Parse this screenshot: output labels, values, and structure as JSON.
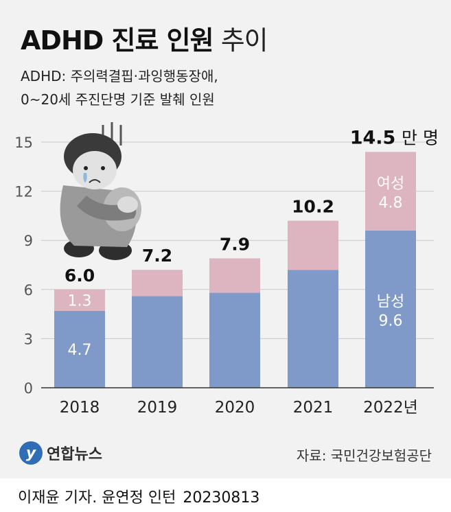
{
  "header": {
    "title_bold": "ADHD 진료 인원",
    "title_light": "추이",
    "subtitle_line1": "ADHD: 주의력결핍·과잉행동장애,",
    "subtitle_line2": "0~20세 주진단명 기준 발췌 인원"
  },
  "chart_data": {
    "type": "bar",
    "stacked": true,
    "categories": [
      "2018",
      "2019",
      "2020",
      "2021",
      "2022년"
    ],
    "series": [
      {
        "name": "남성",
        "values": [
          4.7,
          5.6,
          5.8,
          7.2,
          9.6
        ],
        "color": "#7f9ac8"
      },
      {
        "name": "여성",
        "values": [
          1.3,
          1.6,
          2.1,
          3.0,
          4.8
        ],
        "color": "#ddb5c0"
      }
    ],
    "totals": [
      "6.0",
      "7.2",
      "7.9",
      "10.2",
      "14.5"
    ],
    "total_unit": "만 명",
    "segment_labels": {
      "2018": [
        "4.7",
        "1.3"
      ],
      "2022년": [
        "9.6",
        "4.8"
      ]
    },
    "series_labels_on_bar": {
      "2022년": [
        "남성",
        "여성"
      ]
    },
    "yticks": [
      "0",
      "3",
      "6",
      "9",
      "12",
      "15"
    ],
    "ylim": [
      0,
      15
    ],
    "grid": true
  },
  "footer": {
    "logo_text": "연합뉴스",
    "source": "자료: 국민건강보험공단",
    "credit": "이재윤 기자. 윤연정 인턴",
    "date": "20230813"
  }
}
